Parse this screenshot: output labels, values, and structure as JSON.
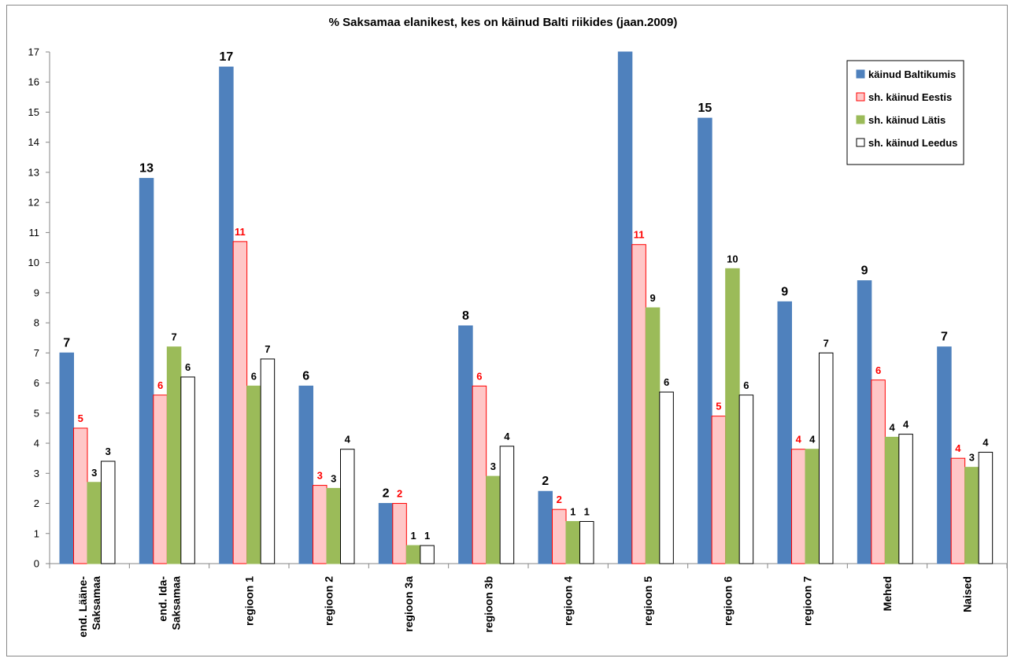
{
  "chart_data": {
    "type": "bar",
    "title": "% Saksamaa elanikest, kes on käinud Balti riikides (jaan.2009)",
    "xlabel": "",
    "ylabel": "",
    "ylim": [
      0,
      17
    ],
    "yticks": [
      0,
      1,
      2,
      3,
      4,
      5,
      6,
      7,
      8,
      9,
      10,
      11,
      12,
      13,
      14,
      15,
      16,
      17
    ],
    "grid": false,
    "legend_position": "top-right",
    "categories": [
      [
        "end. Lääne-",
        "Saksamaa"
      ],
      [
        "end. Ida-",
        "Saksamaa"
      ],
      [
        "regioon 1"
      ],
      [
        "regioon 2"
      ],
      [
        "regioon 3a"
      ],
      [
        "regioon 3b"
      ],
      [
        "regioon 4"
      ],
      [
        "regioon 5"
      ],
      [
        "regioon 6"
      ],
      [
        "regioon 7"
      ],
      [
        "Mehed"
      ],
      [
        "Naised"
      ]
    ],
    "series": [
      {
        "name": "käinud Baltikumis",
        "fill": "#4f81bd",
        "stroke": "#4f81bd",
        "label_color": "#000000",
        "label_size": 16,
        "values": [
          7.0,
          12.8,
          16.5,
          5.9,
          2.0,
          7.9,
          2.4,
          17.0,
          14.8,
          8.7,
          9.4,
          7.2
        ],
        "labels": [
          "7",
          "13",
          "17",
          "6",
          "2",
          "8",
          "2",
          "",
          "15",
          "9",
          "9",
          "7"
        ]
      },
      {
        "name": "sh. käinud Eestis",
        "fill": "#ffc7c7",
        "stroke": "#ff0000",
        "label_color": "#ff0000",
        "label_size": 13,
        "values": [
          4.5,
          5.6,
          10.7,
          2.6,
          2.0,
          5.9,
          1.8,
          10.6,
          4.9,
          3.8,
          6.1,
          3.5
        ],
        "labels": [
          "5",
          "6",
          "11",
          "3",
          "2",
          "6",
          "2",
          "11",
          "5",
          "4",
          "6",
          "4"
        ]
      },
      {
        "name": "sh. käinud Lätis",
        "fill": "#9bbb59",
        "stroke": "#9bbb59",
        "label_color": "#000000",
        "label_size": 13,
        "values": [
          2.7,
          7.2,
          5.9,
          2.5,
          0.6,
          2.9,
          1.4,
          8.5,
          9.8,
          3.8,
          4.2,
          3.2
        ],
        "labels": [
          "3",
          "7",
          "6",
          "3",
          "1",
          "3",
          "1",
          "9",
          "10",
          "4",
          "4",
          "3"
        ]
      },
      {
        "name": "sh. käinud Leedus",
        "fill": "#ffffff",
        "stroke": "#000000",
        "label_color": "#000000",
        "label_size": 13,
        "values": [
          3.4,
          6.2,
          6.8,
          3.8,
          0.6,
          3.9,
          1.4,
          5.7,
          5.6,
          7.0,
          4.3,
          3.7
        ],
        "labels": [
          "3",
          "6",
          "7",
          "4",
          "1",
          "4",
          "1",
          "6",
          "6",
          "7",
          "4",
          "4"
        ]
      }
    ]
  }
}
